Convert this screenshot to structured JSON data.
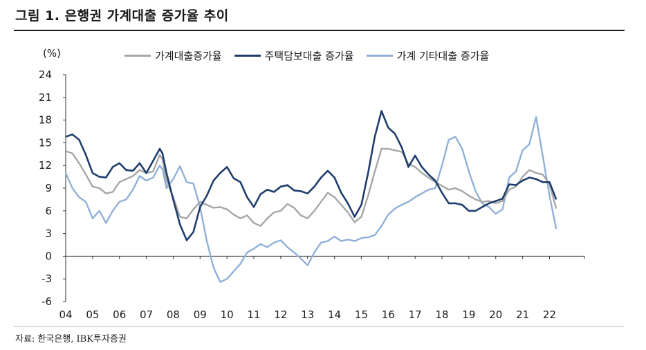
{
  "figure": {
    "title": "그림 1. 은행권 가계대출 증가율 추이",
    "unit": "(%)",
    "source": "자료: 한국은행, IBK투자증권"
  },
  "chart_data": {
    "type": "line",
    "ylim": [
      -6,
      24
    ],
    "yticks": [
      24,
      21,
      18,
      15,
      12,
      9,
      6,
      3,
      0,
      -3,
      -6
    ],
    "xlim": [
      2004,
      2023.3
    ],
    "xticks": [
      "04",
      "05",
      "06",
      "07",
      "08",
      "09",
      "10",
      "11",
      "12",
      "13",
      "14",
      "15",
      "16",
      "17",
      "18",
      "19",
      "20",
      "21",
      "22"
    ],
    "grid": false,
    "legend_position": "top",
    "series": [
      {
        "name": "가계대출증가율",
        "color": "#a6a6a6",
        "points": [
          [
            2004.0,
            13.9
          ],
          [
            2004.25,
            13.6
          ],
          [
            2004.5,
            12.3
          ],
          [
            2004.75,
            10.8
          ],
          [
            2005.0,
            9.2
          ],
          [
            2005.25,
            9.0
          ],
          [
            2005.5,
            8.3
          ],
          [
            2005.75,
            8.5
          ],
          [
            2006.0,
            9.8
          ],
          [
            2006.25,
            10.2
          ],
          [
            2006.5,
            10.6
          ],
          [
            2006.75,
            11.4
          ],
          [
            2007.0,
            11.0
          ],
          [
            2007.25,
            11.2
          ],
          [
            2007.5,
            13.4
          ],
          [
            2007.6,
            12.8
          ],
          [
            2007.75,
            10.0
          ],
          [
            2008.0,
            7.8
          ],
          [
            2008.25,
            5.2
          ],
          [
            2008.5,
            5.0
          ],
          [
            2008.75,
            6.2
          ],
          [
            2009.0,
            7.2
          ],
          [
            2009.25,
            6.8
          ],
          [
            2009.5,
            6.4
          ],
          [
            2009.75,
            6.5
          ],
          [
            2010.0,
            6.2
          ],
          [
            2010.25,
            5.5
          ],
          [
            2010.5,
            5.0
          ],
          [
            2010.75,
            5.4
          ],
          [
            2011.0,
            4.4
          ],
          [
            2011.25,
            4.0
          ],
          [
            2011.5,
            5.0
          ],
          [
            2011.75,
            5.8
          ],
          [
            2012.0,
            6.0
          ],
          [
            2012.25,
            6.9
          ],
          [
            2012.5,
            6.4
          ],
          [
            2012.75,
            5.4
          ],
          [
            2013.0,
            5.0
          ],
          [
            2013.25,
            6.0
          ],
          [
            2013.5,
            7.2
          ],
          [
            2013.75,
            8.4
          ],
          [
            2014.0,
            7.8
          ],
          [
            2014.25,
            6.8
          ],
          [
            2014.5,
            5.8
          ],
          [
            2014.75,
            4.5
          ],
          [
            2015.0,
            5.2
          ],
          [
            2015.25,
            8.0
          ],
          [
            2015.5,
            11.2
          ],
          [
            2015.75,
            14.2
          ],
          [
            2016.0,
            14.2
          ],
          [
            2016.25,
            14.0
          ],
          [
            2016.5,
            13.8
          ],
          [
            2016.75,
            12.2
          ],
          [
            2017.0,
            11.8
          ],
          [
            2017.25,
            11.0
          ],
          [
            2017.5,
            10.4
          ],
          [
            2017.75,
            9.8
          ],
          [
            2018.0,
            9.3
          ],
          [
            2018.25,
            8.8
          ],
          [
            2018.5,
            9.0
          ],
          [
            2018.75,
            8.6
          ],
          [
            2019.0,
            8.0
          ],
          [
            2019.25,
            7.5
          ],
          [
            2019.5,
            7.2
          ],
          [
            2019.75,
            7.3
          ],
          [
            2020.0,
            7.0
          ],
          [
            2020.25,
            7.3
          ],
          [
            2020.5,
            8.8
          ],
          [
            2020.75,
            9.2
          ],
          [
            2021.0,
            10.5
          ],
          [
            2021.25,
            11.4
          ],
          [
            2021.5,
            11.0
          ],
          [
            2021.75,
            10.8
          ],
          [
            2022.0,
            9.5
          ],
          [
            2022.25,
            6.3
          ]
        ]
      },
      {
        "name": "주택담보대출 증가율",
        "color": "#1f3d6b",
        "points": [
          [
            2004.0,
            15.8
          ],
          [
            2004.25,
            16.1
          ],
          [
            2004.5,
            15.4
          ],
          [
            2004.75,
            13.4
          ],
          [
            2005.0,
            11.0
          ],
          [
            2005.25,
            10.5
          ],
          [
            2005.5,
            10.4
          ],
          [
            2005.75,
            11.8
          ],
          [
            2006.0,
            12.3
          ],
          [
            2006.25,
            11.4
          ],
          [
            2006.5,
            11.3
          ],
          [
            2006.75,
            12.3
          ],
          [
            2007.0,
            11.0
          ],
          [
            2007.25,
            12.6
          ],
          [
            2007.5,
            14.2
          ],
          [
            2007.6,
            13.6
          ],
          [
            2007.75,
            11.0
          ],
          [
            2008.0,
            7.5
          ],
          [
            2008.25,
            4.2
          ],
          [
            2008.5,
            2.1
          ],
          [
            2008.75,
            3.2
          ],
          [
            2009.0,
            6.5
          ],
          [
            2009.25,
            8.0
          ],
          [
            2009.5,
            10.0
          ],
          [
            2009.75,
            11.0
          ],
          [
            2010.0,
            11.8
          ],
          [
            2010.25,
            10.3
          ],
          [
            2010.5,
            9.8
          ],
          [
            2010.75,
            7.8
          ],
          [
            2011.0,
            6.5
          ],
          [
            2011.25,
            8.2
          ],
          [
            2011.5,
            8.8
          ],
          [
            2011.75,
            8.5
          ],
          [
            2012.0,
            9.2
          ],
          [
            2012.25,
            9.4
          ],
          [
            2012.5,
            8.7
          ],
          [
            2012.75,
            8.6
          ],
          [
            2013.0,
            8.3
          ],
          [
            2013.25,
            9.2
          ],
          [
            2013.5,
            10.4
          ],
          [
            2013.75,
            11.3
          ],
          [
            2014.0,
            10.4
          ],
          [
            2014.25,
            8.4
          ],
          [
            2014.5,
            7.0
          ],
          [
            2014.75,
            5.2
          ],
          [
            2015.0,
            6.8
          ],
          [
            2015.25,
            11.0
          ],
          [
            2015.5,
            15.8
          ],
          [
            2015.75,
            19.2
          ],
          [
            2016.0,
            17.0
          ],
          [
            2016.25,
            16.2
          ],
          [
            2016.5,
            14.4
          ],
          [
            2016.75,
            11.8
          ],
          [
            2017.0,
            13.3
          ],
          [
            2017.25,
            11.8
          ],
          [
            2017.5,
            10.8
          ],
          [
            2017.75,
            10.0
          ],
          [
            2018.0,
            8.4
          ],
          [
            2018.25,
            7.0
          ],
          [
            2018.5,
            7.0
          ],
          [
            2018.75,
            6.8
          ],
          [
            2019.0,
            6.0
          ],
          [
            2019.25,
            6.0
          ],
          [
            2019.5,
            6.5
          ],
          [
            2019.75,
            7.0
          ],
          [
            2020.0,
            7.3
          ],
          [
            2020.25,
            7.6
          ],
          [
            2020.5,
            9.5
          ],
          [
            2020.75,
            9.4
          ],
          [
            2021.0,
            10.0
          ],
          [
            2021.25,
            10.4
          ],
          [
            2021.5,
            10.2
          ],
          [
            2021.75,
            9.8
          ],
          [
            2022.0,
            9.8
          ],
          [
            2022.25,
            7.5
          ]
        ]
      },
      {
        "name": "가계 기타대출 증가율",
        "color": "#8fb0d8",
        "points": [
          [
            2004.0,
            11.0
          ],
          [
            2004.25,
            9.0
          ],
          [
            2004.5,
            7.8
          ],
          [
            2004.75,
            7.2
          ],
          [
            2005.0,
            5.0
          ],
          [
            2005.25,
            6.0
          ],
          [
            2005.5,
            4.4
          ],
          [
            2005.75,
            6.0
          ],
          [
            2006.0,
            7.2
          ],
          [
            2006.25,
            7.5
          ],
          [
            2006.5,
            8.8
          ],
          [
            2006.75,
            10.6
          ],
          [
            2007.0,
            10.0
          ],
          [
            2007.25,
            10.4
          ],
          [
            2007.5,
            12.0
          ],
          [
            2007.6,
            11.5
          ],
          [
            2007.75,
            9.0
          ],
          [
            2008.0,
            10.2
          ],
          [
            2008.25,
            11.9
          ],
          [
            2008.5,
            9.8
          ],
          [
            2008.75,
            9.6
          ],
          [
            2009.0,
            6.5
          ],
          [
            2009.25,
            2.0
          ],
          [
            2009.5,
            -1.5
          ],
          [
            2009.75,
            -3.4
          ],
          [
            2010.0,
            -3.0
          ],
          [
            2010.25,
            -2.0
          ],
          [
            2010.5,
            -1.0
          ],
          [
            2010.75,
            0.5
          ],
          [
            2011.0,
            1.0
          ],
          [
            2011.25,
            1.6
          ],
          [
            2011.5,
            1.2
          ],
          [
            2011.75,
            1.8
          ],
          [
            2012.0,
            2.1
          ],
          [
            2012.25,
            1.2
          ],
          [
            2012.5,
            0.5
          ],
          [
            2012.75,
            -0.3
          ],
          [
            2013.0,
            -1.2
          ],
          [
            2013.25,
            0.5
          ],
          [
            2013.5,
            1.8
          ],
          [
            2013.75,
            2.0
          ],
          [
            2014.0,
            2.6
          ],
          [
            2014.25,
            2.0
          ],
          [
            2014.5,
            2.2
          ],
          [
            2014.75,
            2.0
          ],
          [
            2015.0,
            2.4
          ],
          [
            2015.25,
            2.5
          ],
          [
            2015.5,
            2.8
          ],
          [
            2015.75,
            4.0
          ],
          [
            2016.0,
            5.5
          ],
          [
            2016.25,
            6.3
          ],
          [
            2016.5,
            6.8
          ],
          [
            2016.75,
            7.2
          ],
          [
            2017.0,
            7.8
          ],
          [
            2017.25,
            8.3
          ],
          [
            2017.5,
            8.8
          ],
          [
            2017.75,
            9.0
          ],
          [
            2018.0,
            12.0
          ],
          [
            2018.25,
            15.4
          ],
          [
            2018.5,
            15.8
          ],
          [
            2018.75,
            14.2
          ],
          [
            2019.0,
            11.2
          ],
          [
            2019.25,
            8.6
          ],
          [
            2019.5,
            7.0
          ],
          [
            2019.75,
            6.5
          ],
          [
            2020.0,
            5.6
          ],
          [
            2020.25,
            6.2
          ],
          [
            2020.5,
            10.4
          ],
          [
            2020.75,
            11.2
          ],
          [
            2021.0,
            14.0
          ],
          [
            2021.25,
            14.8
          ],
          [
            2021.5,
            18.4
          ],
          [
            2021.75,
            13.2
          ],
          [
            2022.0,
            8.0
          ],
          [
            2022.25,
            3.6
          ]
        ]
      }
    ]
  }
}
